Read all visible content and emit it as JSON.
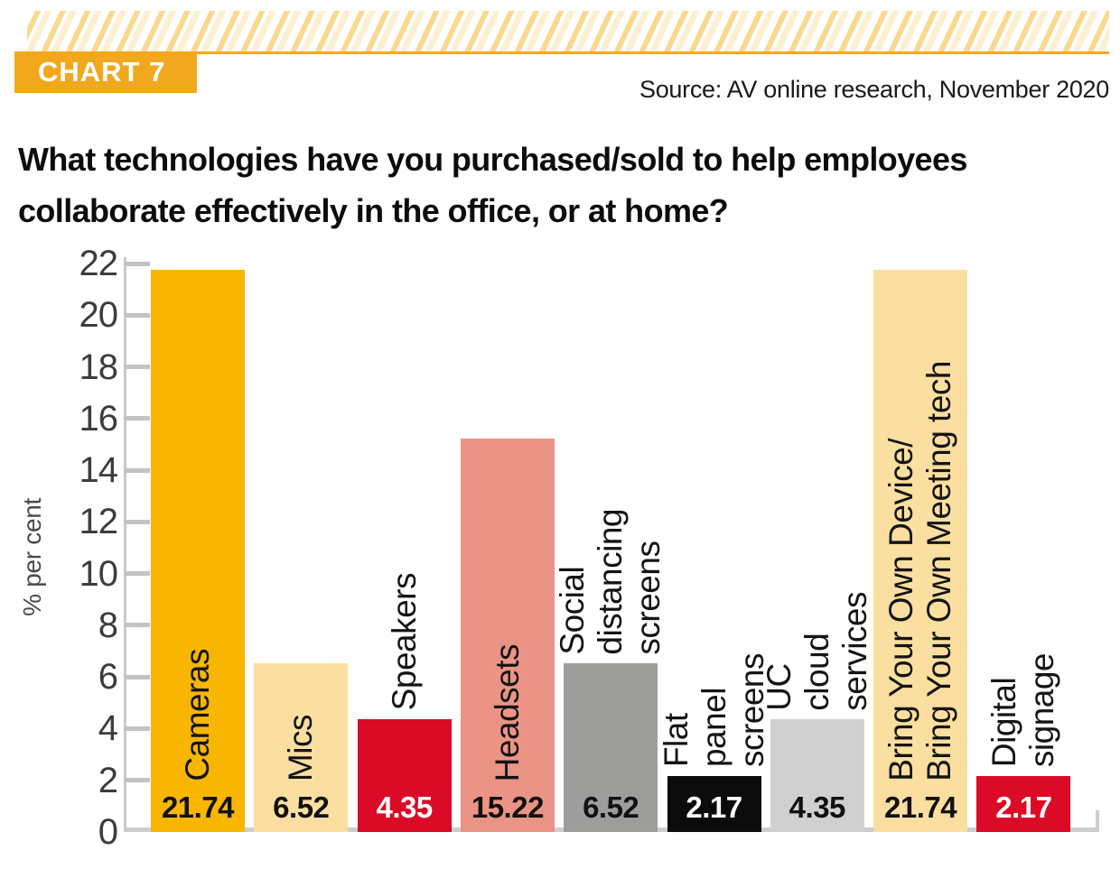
{
  "badge": {
    "label": "CHART 7"
  },
  "source": "Source: AV online research, November 2020",
  "title": {
    "line1": "What technologies have you purchased/sold to help employees",
    "line2": "collaborate effectively in the office, or at home?"
  },
  "colors": {
    "accent_orange": "#F2A81D",
    "rule_orange": "#F5A91C",
    "axis_gray": "#C9C9C9",
    "baseline_gray": "#CDCDCD"
  },
  "chart_data": {
    "type": "bar",
    "title": "What technologies have you purchased/sold to help employees collaborate effectively in the office, or at home?",
    "xlabel": "",
    "ylabel": "% per cent",
    "ylim": [
      0,
      22
    ],
    "ytick_step": 2,
    "grid": false,
    "legend": "none",
    "categories": [
      "Cameras",
      "Mics",
      "Speakers",
      "Headsets",
      "Social distancing\nscreens",
      "Flat panel screens",
      "UC cloud services",
      "Bring Your Own Device/\nBring Your Own Meeting tech",
      "Digital signage"
    ],
    "values": [
      21.74,
      6.52,
      4.35,
      15.22,
      6.52,
      2.17,
      4.35,
      21.74,
      2.17
    ],
    "value_labels": [
      "21.74",
      "6.52",
      "4.35",
      "15.22",
      "6.52",
      "2.17",
      "4.35",
      "21.74",
      "2.17"
    ],
    "bar_colors": [
      "#F8B600",
      "#FBDFA0",
      "#DB0A26",
      "#EB9486",
      "#9D9D9C",
      "#0B0B0B",
      "#D0D0D0",
      "#FBDFA0",
      "#DB0A26"
    ],
    "value_label_colors": [
      "#111111",
      "#111111",
      "#FFFFFF",
      "#111111",
      "#111111",
      "#FFFFFF",
      "#111111",
      "#111111",
      "#FFFFFF"
    ],
    "category_label_placement": [
      "inside",
      "inside",
      "above",
      "inside",
      "above",
      "above",
      "above",
      "inside",
      "above"
    ],
    "bar_slugs": [
      "cameras",
      "mics",
      "speakers",
      "headsets",
      "social-distancing-screens",
      "flat-panel-screens",
      "uc-cloud-services",
      "byod-byom-tech",
      "digital-signage"
    ]
  }
}
